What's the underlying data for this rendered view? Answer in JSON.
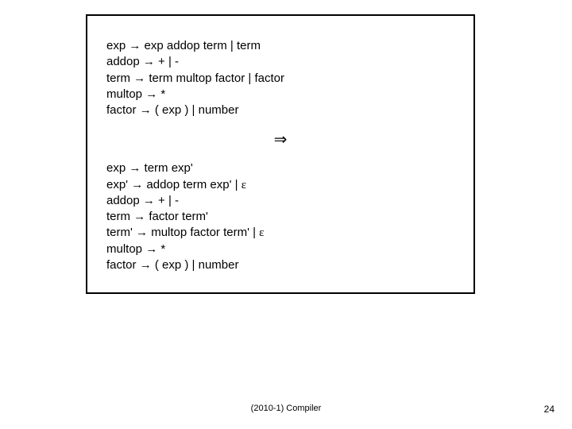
{
  "colors": {
    "background": "#ffffff",
    "text": "#000000",
    "box_border": "#000000"
  },
  "typography": {
    "body_font": "Arial",
    "body_size_pt": 11,
    "footer_size_pt": 8,
    "line_height": 1.35
  },
  "symbols": {
    "arrow": "→",
    "double_arrow": "⇒",
    "epsilon": "ε",
    "bar": "|"
  },
  "grammar_top": {
    "lines": [
      "exp {arrow} exp addop term {bar} term",
      "addop {arrow} + {bar} -",
      "term {arrow} term multop factor {bar} factor",
      "multop {arrow} *",
      "factor {arrow} ( exp ) {bar} number"
    ]
  },
  "transition_symbol": "{double_arrow}",
  "grammar_bottom": {
    "lines": [
      "exp {arrow} term exp'",
      "exp' {arrow} addop term exp' {bar} {epsilon}",
      "addop {arrow} + {bar} -",
      "term {arrow} factor term'",
      "term' {arrow} multop factor term' {bar} {epsilon}",
      "multop {arrow} *",
      "factor {arrow} ( exp ) {bar} number"
    ]
  },
  "footer": {
    "center": "(2010-1) Compiler",
    "page": "24"
  }
}
